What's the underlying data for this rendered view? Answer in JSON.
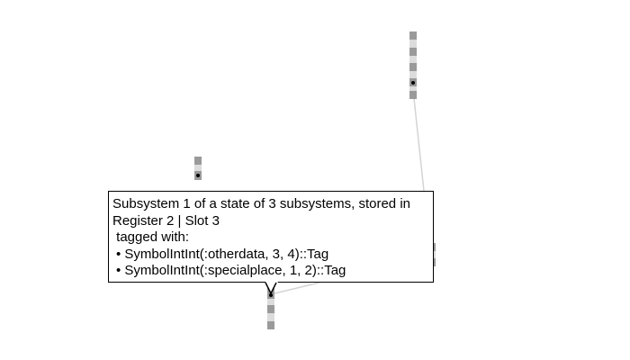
{
  "tooltip": {
    "title": "Subsystem 1 of a state of 3 subsystems, stored in",
    "location": "Register 2 | Slot 3",
    "tagged_label": "tagged with:",
    "tags": [
      "SymbolIntInt(:otherdata, 3, 4)::Tag",
      "SymbolIntInt(:specialplace, 1, 2)::Tag"
    ]
  },
  "colors": {
    "slot_dark": "#9a9a9a",
    "slot_light": "#dcdcdc",
    "link": "#d4d4d4",
    "occupied_marker": "#000000"
  }
}
